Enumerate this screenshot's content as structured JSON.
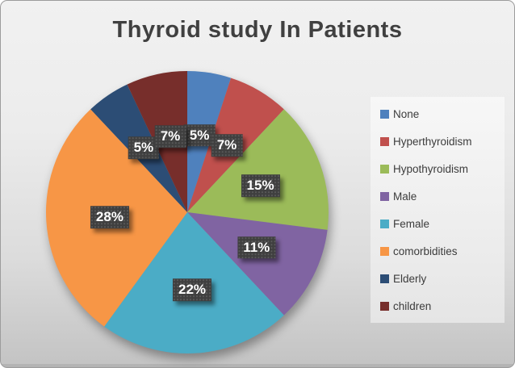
{
  "title": "Thyroid study In Patients",
  "chart_data": {
    "type": "pie",
    "title": "Thyroid study In Patients",
    "categories": [
      "None",
      "Hyperthyroidism",
      "Hypothyroidism",
      "Male",
      "Female",
      "comorbidities",
      "Elderly",
      "children"
    ],
    "values": [
      5,
      7,
      15,
      11,
      22,
      28,
      5,
      7
    ],
    "data_labels": [
      "5%",
      "7%",
      "15%",
      "11%",
      "22%",
      "28%",
      "5%",
      "7%"
    ],
    "colors": [
      "#4F81BD",
      "#C0504D",
      "#9BBB59",
      "#8064A2",
      "#4BACC6",
      "#F79646",
      "#2C4D75",
      "#772E2B"
    ],
    "start_angle_deg": 0,
    "direction": "clockwise",
    "legend_position": "right",
    "data_label_background": "#3F3F3F",
    "data_label_text_color": "#FFFFFF",
    "title_color": "#404040"
  }
}
